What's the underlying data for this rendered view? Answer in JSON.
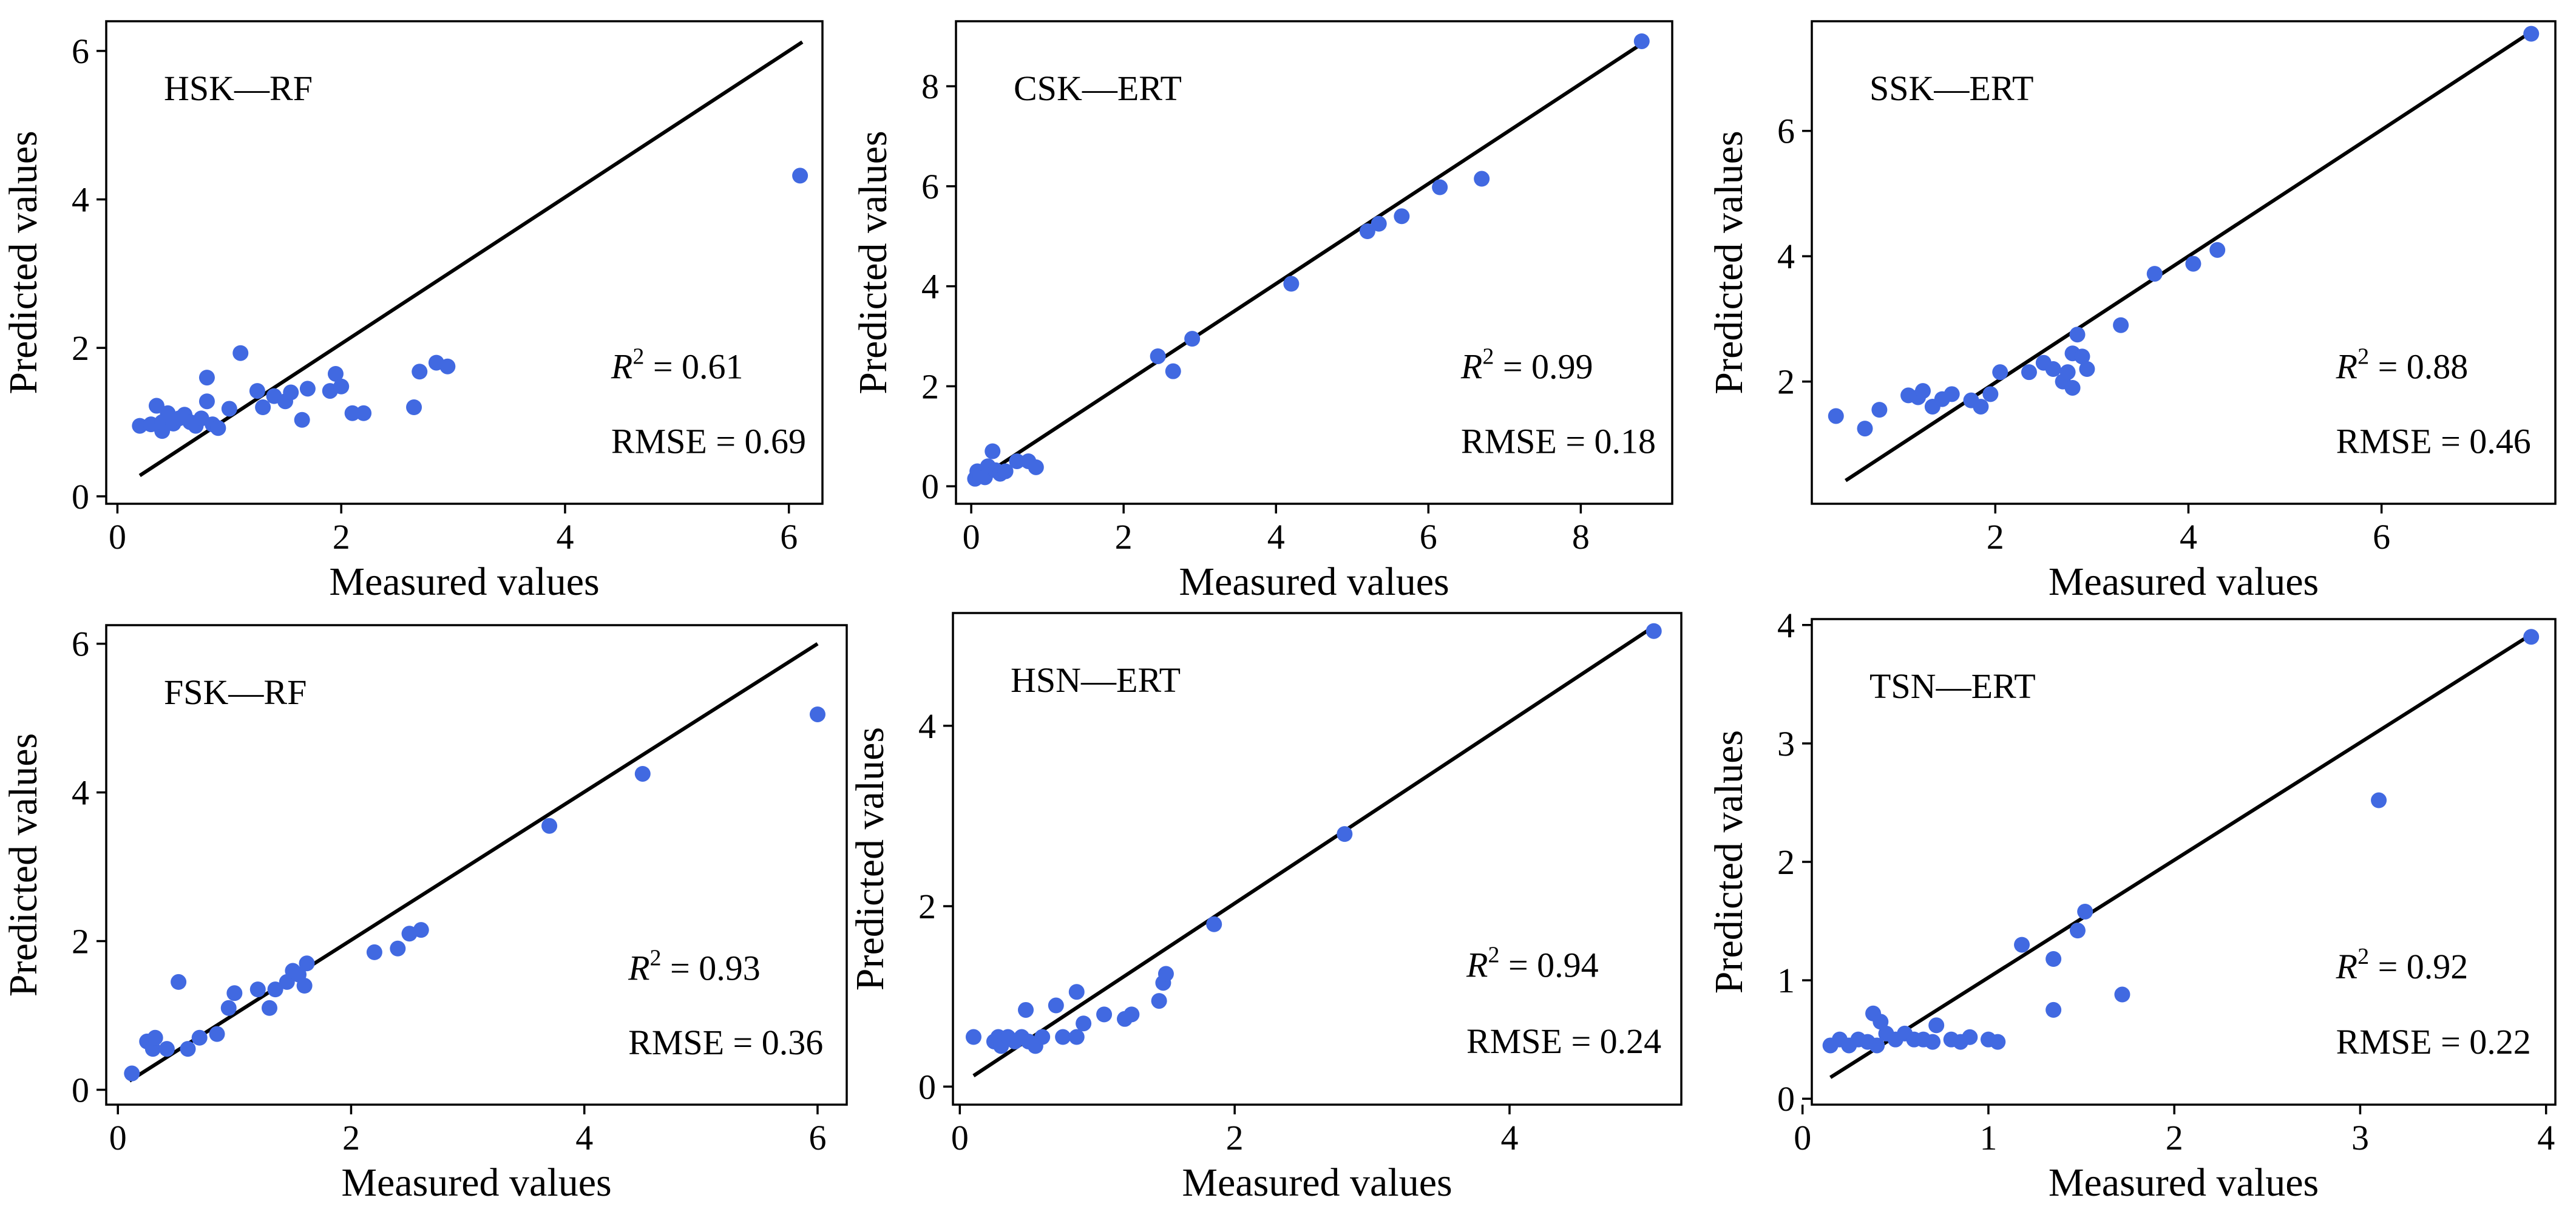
{
  "chart_data": [
    {
      "type": "scatter",
      "title": "HSK—RF",
      "xlabel": "Measured values",
      "ylabel": "Predicted values",
      "xlim": [
        -0.1,
        6.3
      ],
      "ylim": [
        -0.1,
        6.4
      ],
      "xticks": [
        0,
        2,
        4,
        6
      ],
      "yticks": [
        0,
        2,
        4,
        6
      ],
      "r2_symbol": "R",
      "r2_sup": "2",
      "r2_text": " = 0.61",
      "rmse_text": "RMSE = 0.69",
      "fit_line": [
        [
          0.2,
          0.28
        ],
        [
          6.12,
          6.12
        ]
      ],
      "color": "#4169e1",
      "points": [
        [
          0.2,
          0.95
        ],
        [
          0.3,
          0.97
        ],
        [
          0.35,
          1.22
        ],
        [
          0.4,
          0.88
        ],
        [
          0.4,
          1.0
        ],
        [
          0.45,
          1.12
        ],
        [
          0.5,
          0.98
        ],
        [
          0.55,
          1.05
        ],
        [
          0.6,
          1.1
        ],
        [
          0.65,
          1.0
        ],
        [
          0.7,
          0.95
        ],
        [
          0.75,
          1.05
        ],
        [
          0.8,
          1.28
        ],
        [
          0.8,
          1.6
        ],
        [
          0.85,
          0.97
        ],
        [
          0.9,
          0.92
        ],
        [
          1.0,
          1.18
        ],
        [
          1.1,
          1.93
        ],
        [
          1.25,
          1.42
        ],
        [
          1.3,
          1.2
        ],
        [
          1.4,
          1.35
        ],
        [
          1.5,
          1.28
        ],
        [
          1.55,
          1.4
        ],
        [
          1.65,
          1.03
        ],
        [
          1.7,
          1.45
        ],
        [
          1.9,
          1.42
        ],
        [
          1.95,
          1.65
        ],
        [
          2.0,
          1.48
        ],
        [
          2.1,
          1.12
        ],
        [
          2.2,
          1.12
        ],
        [
          2.65,
          1.2
        ],
        [
          2.7,
          1.68
        ],
        [
          2.85,
          1.8
        ],
        [
          2.95,
          1.75
        ],
        [
          6.1,
          4.32
        ]
      ]
    },
    {
      "type": "scatter",
      "title": "CSK—ERT",
      "xlabel": "Measured values",
      "ylabel": "Predicted values",
      "xlim": [
        -0.2,
        9.2
      ],
      "ylim": [
        -0.35,
        9.3
      ],
      "xticks": [
        0,
        2,
        4,
        6,
        8
      ],
      "yticks": [
        0,
        2,
        4,
        6,
        8
      ],
      "r2_symbol": "R",
      "r2_sup": "2",
      "r2_text": " = 0.99",
      "rmse_text": "RMSE = 0.18",
      "fit_line": [
        [
          0.05,
          0.1
        ],
        [
          8.8,
          8.85
        ]
      ],
      "color": "#4169e1",
      "points": [
        [
          0.05,
          0.15
        ],
        [
          0.08,
          0.3
        ],
        [
          0.12,
          0.22
        ],
        [
          0.18,
          0.18
        ],
        [
          0.22,
          0.4
        ],
        [
          0.28,
          0.7
        ],
        [
          0.32,
          0.32
        ],
        [
          0.38,
          0.25
        ],
        [
          0.45,
          0.3
        ],
        [
          0.6,
          0.5
        ],
        [
          0.75,
          0.5
        ],
        [
          0.85,
          0.38
        ],
        [
          2.45,
          2.6
        ],
        [
          2.65,
          2.3
        ],
        [
          2.9,
          2.95
        ],
        [
          4.2,
          4.05
        ],
        [
          5.2,
          5.1
        ],
        [
          5.35,
          5.25
        ],
        [
          5.65,
          5.4
        ],
        [
          6.15,
          5.98
        ],
        [
          6.7,
          6.15
        ],
        [
          8.8,
          8.9
        ]
      ]
    },
    {
      "type": "scatter",
      "title": "SSK—ERT",
      "xlabel": "Measured values",
      "ylabel": "Predicted values",
      "xlim": [
        0.1,
        7.8
      ],
      "ylim": [
        0.05,
        7.75
      ],
      "xticks": [
        2,
        4,
        6
      ],
      "yticks": [
        2,
        4,
        6
      ],
      "r2_symbol": "R",
      "r2_sup": "2",
      "r2_text": " = 0.88",
      "rmse_text": "RMSE = 0.46",
      "fit_line": [
        [
          0.45,
          0.42
        ],
        [
          7.55,
          7.58
        ]
      ],
      "color": "#4169e1",
      "points": [
        [
          0.35,
          1.45
        ],
        [
          0.65,
          1.25
        ],
        [
          0.8,
          1.55
        ],
        [
          1.1,
          1.78
        ],
        [
          1.2,
          1.75
        ],
        [
          1.25,
          1.85
        ],
        [
          1.35,
          1.6
        ],
        [
          1.45,
          1.72
        ],
        [
          1.55,
          1.8
        ],
        [
          1.75,
          1.7
        ],
        [
          1.85,
          1.6
        ],
        [
          1.95,
          1.8
        ],
        [
          2.05,
          2.15
        ],
        [
          2.35,
          2.15
        ],
        [
          2.5,
          2.3
        ],
        [
          2.6,
          2.2
        ],
        [
          2.7,
          2.0
        ],
        [
          2.75,
          2.15
        ],
        [
          2.8,
          1.9
        ],
        [
          2.8,
          2.45
        ],
        [
          2.85,
          2.75
        ],
        [
          2.9,
          2.4
        ],
        [
          2.95,
          2.2
        ],
        [
          3.3,
          2.9
        ],
        [
          3.65,
          3.72
        ],
        [
          4.05,
          3.88
        ],
        [
          4.3,
          4.1
        ],
        [
          7.55,
          7.55
        ]
      ]
    },
    {
      "type": "scatter",
      "title": "FSK—RF",
      "xlabel": "Measured values",
      "ylabel": "Predicted values",
      "xlim": [
        -0.1,
        6.25
      ],
      "ylim": [
        -0.2,
        6.25
      ],
      "xticks": [
        0,
        2,
        4,
        6
      ],
      "yticks": [
        0,
        2,
        4,
        6
      ],
      "r2_symbol": "R",
      "r2_sup": "2",
      "r2_text": " = 0.93",
      "rmse_text": "RMSE = 0.36",
      "fit_line": [
        [
          0.1,
          0.12
        ],
        [
          6.0,
          6.0
        ]
      ],
      "color": "#4169e1",
      "points": [
        [
          0.12,
          0.22
        ],
        [
          0.25,
          0.65
        ],
        [
          0.3,
          0.55
        ],
        [
          0.32,
          0.7
        ],
        [
          0.42,
          0.55
        ],
        [
          0.52,
          1.45
        ],
        [
          0.6,
          0.55
        ],
        [
          0.7,
          0.7
        ],
        [
          0.85,
          0.75
        ],
        [
          0.95,
          1.1
        ],
        [
          1.0,
          1.3
        ],
        [
          1.2,
          1.35
        ],
        [
          1.3,
          1.1
        ],
        [
          1.35,
          1.35
        ],
        [
          1.45,
          1.45
        ],
        [
          1.5,
          1.6
        ],
        [
          1.55,
          1.55
        ],
        [
          1.6,
          1.4
        ],
        [
          1.62,
          1.7
        ],
        [
          2.2,
          1.85
        ],
        [
          2.4,
          1.9
        ],
        [
          2.5,
          2.1
        ],
        [
          2.6,
          2.15
        ],
        [
          3.7,
          3.55
        ],
        [
          4.5,
          4.25
        ],
        [
          6.0,
          5.05
        ]
      ]
    },
    {
      "type": "scatter",
      "title": "HSN—ERT",
      "xlabel": "Measured values",
      "ylabel": "Predicted values",
      "xlim": [
        -0.05,
        5.25
      ],
      "ylim": [
        -0.2,
        5.25
      ],
      "xticks": [
        0,
        2,
        4
      ],
      "yticks": [
        0,
        2,
        4
      ],
      "r2_symbol": "R",
      "r2_sup": "2",
      "r2_text": " = 0.94",
      "rmse_text": "RMSE = 0.24",
      "fit_line": [
        [
          0.1,
          0.12
        ],
        [
          5.05,
          5.1
        ]
      ],
      "color": "#4169e1",
      "points": [
        [
          0.1,
          0.55
        ],
        [
          0.25,
          0.5
        ],
        [
          0.28,
          0.55
        ],
        [
          0.3,
          0.45
        ],
        [
          0.35,
          0.55
        ],
        [
          0.4,
          0.5
        ],
        [
          0.45,
          0.55
        ],
        [
          0.48,
          0.85
        ],
        [
          0.5,
          0.5
        ],
        [
          0.55,
          0.45
        ],
        [
          0.6,
          0.55
        ],
        [
          0.7,
          0.9
        ],
        [
          0.75,
          0.55
        ],
        [
          0.85,
          0.55
        ],
        [
          0.85,
          1.05
        ],
        [
          0.9,
          0.7
        ],
        [
          1.05,
          0.8
        ],
        [
          1.2,
          0.75
        ],
        [
          1.25,
          0.8
        ],
        [
          1.45,
          0.95
        ],
        [
          1.48,
          1.15
        ],
        [
          1.5,
          1.25
        ],
        [
          1.85,
          1.8
        ],
        [
          2.8,
          2.8
        ],
        [
          5.05,
          5.05
        ]
      ]
    },
    {
      "type": "scatter",
      "title": "TSN—ERT",
      "xlabel": "Measured values",
      "ylabel": "Predicted values",
      "xlim": [
        0.05,
        4.05
      ],
      "ylim": [
        -0.05,
        4.05
      ],
      "xticks": [
        0,
        1,
        2,
        3,
        4
      ],
      "yticks": [
        0,
        1,
        2,
        3,
        4
      ],
      "r2_symbol": "R",
      "r2_sup": "2",
      "r2_text": " = 0.92",
      "rmse_text": "RMSE = 0.22",
      "fit_line": [
        [
          0.15,
          0.18
        ],
        [
          3.92,
          3.92
        ]
      ],
      "color": "#4169e1",
      "points": [
        [
          0.15,
          0.45
        ],
        [
          0.2,
          0.5
        ],
        [
          0.25,
          0.45
        ],
        [
          0.3,
          0.5
        ],
        [
          0.35,
          0.48
        ],
        [
          0.38,
          0.72
        ],
        [
          0.4,
          0.45
        ],
        [
          0.42,
          0.65
        ],
        [
          0.45,
          0.55
        ],
        [
          0.5,
          0.5
        ],
        [
          0.55,
          0.55
        ],
        [
          0.6,
          0.5
        ],
        [
          0.65,
          0.5
        ],
        [
          0.7,
          0.48
        ],
        [
          0.72,
          0.62
        ],
        [
          0.8,
          0.5
        ],
        [
          0.85,
          0.48
        ],
        [
          0.9,
          0.52
        ],
        [
          1.0,
          0.5
        ],
        [
          1.05,
          0.48
        ],
        [
          1.18,
          1.3
        ],
        [
          1.35,
          0.75
        ],
        [
          1.35,
          1.18
        ],
        [
          1.48,
          1.42
        ],
        [
          1.52,
          1.58
        ],
        [
          1.72,
          0.88
        ],
        [
          3.1,
          2.52
        ],
        [
          3.92,
          3.9
        ]
      ]
    }
  ]
}
